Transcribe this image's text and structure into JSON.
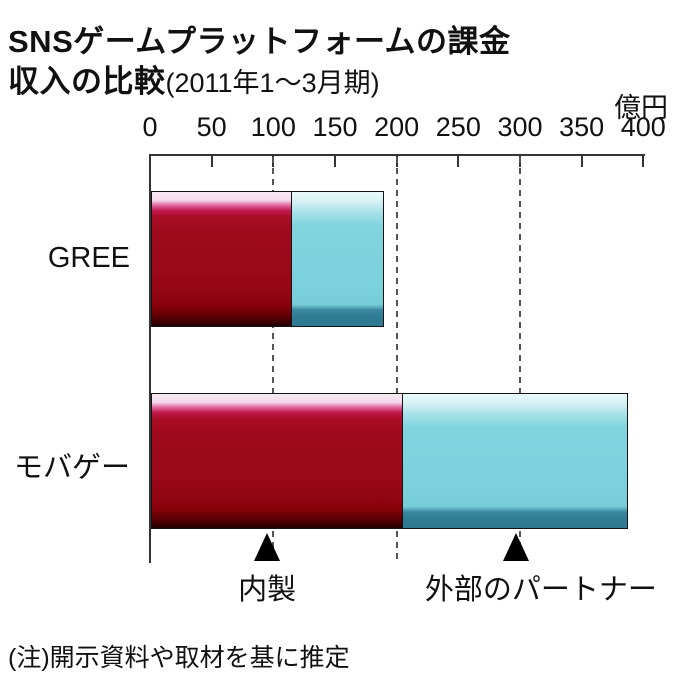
{
  "title": {
    "line1": "SNSゲームプラットフォームの課金",
    "line2": "収入の比較",
    "period": "(2011年1～3月期)"
  },
  "unit_label": "億円",
  "note": "(注)開示資料や取材を基に推定",
  "chart_data": {
    "type": "bar",
    "orientation": "horizontal_stacked",
    "title": "SNSゲームプラットフォームの課金収入の比較",
    "subtitle": "2011年1～3月期",
    "unit": "億円",
    "categories": [
      "GREE",
      "モバゲー"
    ],
    "series": [
      {
        "name": "内製",
        "color": "#9e0a1c",
        "values": [
          115,
          205
        ]
      },
      {
        "name": "外部のパートナー",
        "color": "#7bd1dc",
        "values": [
          75,
          183
        ]
      }
    ],
    "totals": [
      190,
      388
    ],
    "xlim": [
      0,
      400
    ],
    "ticks": [
      0,
      50,
      100,
      150,
      200,
      250,
      300,
      350,
      400
    ],
    "dashed_gridlines": [
      100,
      200,
      300
    ],
    "grid": "dashed-vertical",
    "legend_position": "below-chart-arrow-callouts",
    "annotations": [
      {
        "label": "内製",
        "series": "内製",
        "arrow_x": 95,
        "label_x": 95
      },
      {
        "label": "外部のパートナー",
        "series": "外部のパートナー",
        "arrow_x": 297,
        "label_x": 317
      }
    ]
  }
}
